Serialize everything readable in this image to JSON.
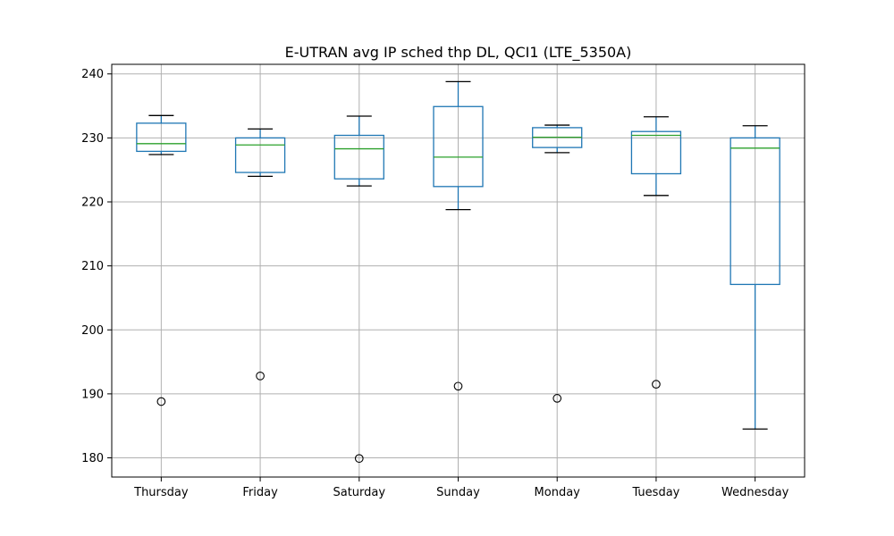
{
  "chart_data": {
    "type": "boxplot",
    "title": "E-UTRAN avg IP sched thp DL, QCI1 (LTE_5350A)",
    "xlabel": "",
    "ylabel": "",
    "ylim": [
      177,
      241.5
    ],
    "yticks": [
      180,
      190,
      200,
      210,
      220,
      230,
      240
    ],
    "grid": true,
    "categories": [
      "Thursday",
      "Friday",
      "Saturday",
      "Sunday",
      "Monday",
      "Tuesday",
      "Wednesday"
    ],
    "boxes": [
      {
        "category": "Thursday",
        "whisker_low": 227.4,
        "q1": 227.9,
        "median": 229.1,
        "q3": 232.3,
        "whisker_high": 233.5,
        "outliers": [
          188.8
        ]
      },
      {
        "category": "Friday",
        "whisker_low": 224.0,
        "q1": 224.6,
        "median": 228.9,
        "q3": 230.0,
        "whisker_high": 231.4,
        "outliers": [
          192.8
        ]
      },
      {
        "category": "Saturday",
        "whisker_low": 222.5,
        "q1": 223.6,
        "median": 228.3,
        "q3": 230.4,
        "whisker_high": 233.4,
        "outliers": [
          179.9
        ]
      },
      {
        "category": "Sunday",
        "whisker_low": 218.8,
        "q1": 222.4,
        "median": 227.0,
        "q3": 234.9,
        "whisker_high": 238.8,
        "outliers": [
          191.2
        ]
      },
      {
        "category": "Monday",
        "whisker_low": 227.7,
        "q1": 228.5,
        "median": 230.1,
        "q3": 231.6,
        "whisker_high": 232.0,
        "outliers": [
          189.3
        ]
      },
      {
        "category": "Tuesday",
        "whisker_low": 221.0,
        "q1": 224.4,
        "median": 230.4,
        "q3": 231.0,
        "whisker_high": 233.3,
        "outliers": [
          191.5
        ]
      },
      {
        "category": "Wednesday",
        "whisker_low": 184.5,
        "q1": 207.1,
        "median": 228.4,
        "q3": 230.0,
        "whisker_high": 231.9,
        "outliers": []
      }
    ],
    "colors": {
      "box": "#1f77b4",
      "median": "#2ca02c",
      "whisker": "#1f77b4",
      "cap": "#000000",
      "grid": "#b0b0b0",
      "outlier": "#000000"
    }
  }
}
